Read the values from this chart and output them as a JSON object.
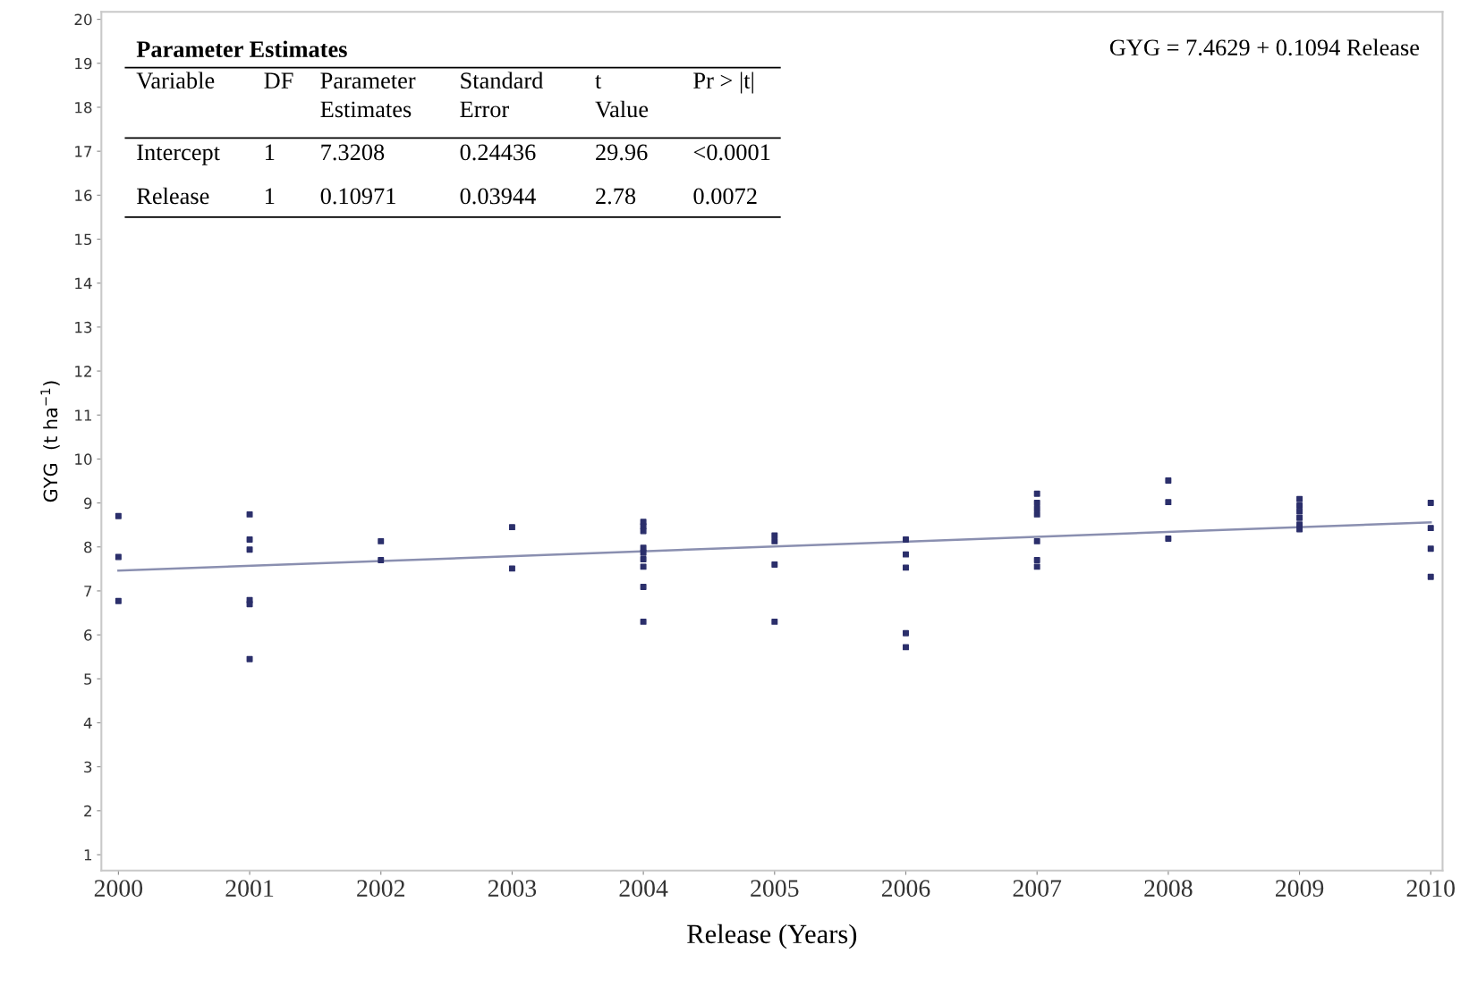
{
  "chart_data": {
    "type": "scatter",
    "xlabel": "Release (Years)",
    "ylabel": "GYG  (t ha$^{−1}$)",
    "xlim": [
      1999.87,
      2010.09
    ],
    "ylim": [
      0.64,
      20.17
    ],
    "xticks": [
      2000,
      2001,
      2002,
      2003,
      2004,
      2005,
      2006,
      2007,
      2008,
      2009,
      2010
    ],
    "yticks": [
      1,
      2,
      3,
      4,
      5,
      6,
      7,
      8,
      9,
      10,
      11,
      12,
      13,
      14,
      15,
      16,
      17,
      18,
      19,
      20
    ],
    "grid": false,
    "series": [
      {
        "marker": "square",
        "color": "#2b2f6b",
        "x": [
          2000,
          2000,
          2000,
          2001,
          2001,
          2001,
          2001,
          2001,
          2001,
          2002,
          2002,
          2003,
          2003,
          2004,
          2004,
          2004,
          2004,
          2004,
          2004,
          2004,
          2004,
          2004,
          2005,
          2005,
          2005,
          2005,
          2006,
          2006,
          2006,
          2006,
          2006,
          2007,
          2007,
          2007,
          2007,
          2007,
          2007,
          2007,
          2008,
          2008,
          2008,
          2009,
          2009,
          2009,
          2009,
          2009,
          2009,
          2010,
          2010,
          2010,
          2010
        ],
        "values": [
          8.7,
          7.77,
          6.77,
          8.74,
          8.17,
          7.94,
          6.79,
          6.7,
          5.45,
          8.13,
          7.7,
          8.45,
          7.51,
          8.57,
          8.47,
          8.36,
          7.98,
          7.87,
          7.72,
          7.55,
          7.09,
          6.3,
          8.26,
          8.13,
          7.6,
          6.3,
          8.17,
          7.83,
          7.53,
          6.04,
          5.72,
          9.21,
          9.0,
          8.87,
          8.74,
          8.13,
          7.7,
          7.55,
          9.51,
          9.02,
          8.19,
          9.09,
          8.94,
          8.81,
          8.66,
          8.51,
          8.4,
          9.0,
          8.43,
          7.96,
          7.32
        ]
      },
      {
        "type": "line",
        "marker": "none",
        "color": "#8a8fb0",
        "x": [
          2000,
          2010
        ],
        "values": [
          7.46,
          8.56
        ]
      }
    ],
    "annotations": [
      "Parameter Estimates",
      "Variable",
      "DF",
      "Parameter\nEstimates",
      "Standard\nError",
      "t\nValue",
      "Pr > |t|",
      "Intercept",
      "1",
      "7.3208",
      "0.24436",
      "29.96",
      "<0.0001",
      "Release",
      "1",
      "0.10971",
      "0.03944",
      "2.78",
      "0.0072",
      "GYG = 7.4629 + 0.1094 Release"
    ]
  }
}
